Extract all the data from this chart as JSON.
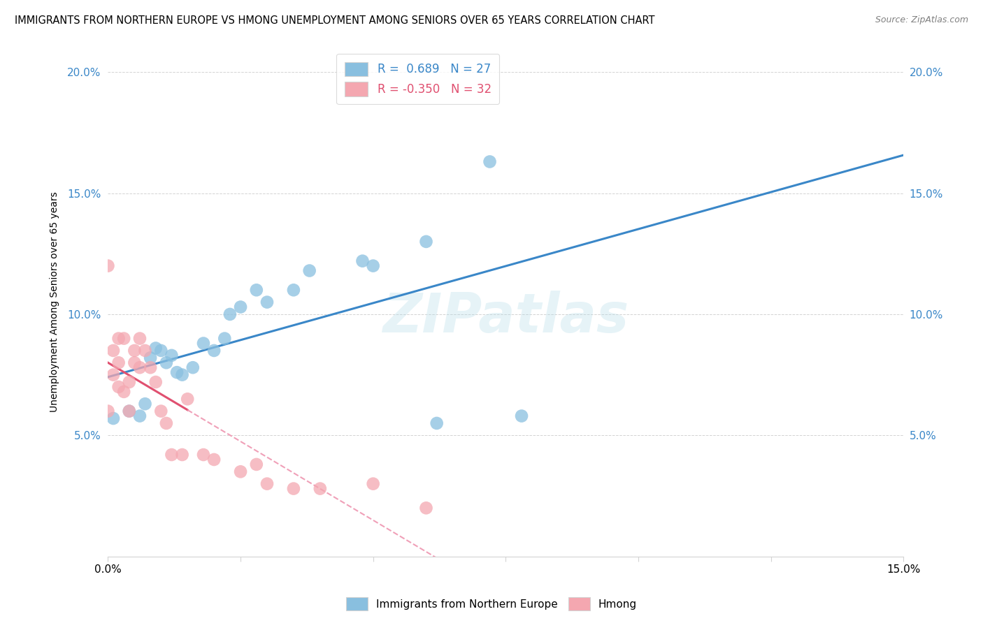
{
  "title": "IMMIGRANTS FROM NORTHERN EUROPE VS HMONG UNEMPLOYMENT AMONG SENIORS OVER 65 YEARS CORRELATION CHART",
  "source": "Source: ZipAtlas.com",
  "ylabel": "Unemployment Among Seniors over 65 years",
  "xlim": [
    0.0,
    0.15
  ],
  "ylim": [
    0.0,
    0.21
  ],
  "xticks": [
    0.0,
    0.025,
    0.05,
    0.075,
    0.1,
    0.125,
    0.15
  ],
  "yticks": [
    0.0,
    0.05,
    0.1,
    0.15,
    0.2
  ],
  "blue_color": "#89bfdf",
  "pink_color": "#f4a7b0",
  "blue_line_color": "#3a87c8",
  "pink_line_color": "#e05070",
  "pink_dash_color": "#f0a0b8",
  "watermark": "ZIPatlas",
  "blue_scatter_x": [
    0.001,
    0.004,
    0.006,
    0.007,
    0.008,
    0.009,
    0.01,
    0.011,
    0.012,
    0.013,
    0.014,
    0.016,
    0.018,
    0.02,
    0.022,
    0.023,
    0.025,
    0.028,
    0.03,
    0.035,
    0.038,
    0.048,
    0.05,
    0.06,
    0.062,
    0.072,
    0.078
  ],
  "blue_scatter_y": [
    0.057,
    0.06,
    0.058,
    0.063,
    0.082,
    0.086,
    0.085,
    0.08,
    0.083,
    0.076,
    0.075,
    0.078,
    0.088,
    0.085,
    0.09,
    0.1,
    0.103,
    0.11,
    0.105,
    0.11,
    0.118,
    0.122,
    0.12,
    0.13,
    0.055,
    0.163,
    0.058
  ],
  "pink_scatter_x": [
    0.0,
    0.0,
    0.001,
    0.001,
    0.002,
    0.002,
    0.002,
    0.003,
    0.003,
    0.004,
    0.004,
    0.005,
    0.005,
    0.006,
    0.006,
    0.007,
    0.008,
    0.009,
    0.01,
    0.011,
    0.012,
    0.014,
    0.015,
    0.018,
    0.02,
    0.025,
    0.028,
    0.03,
    0.035,
    0.04,
    0.05,
    0.06
  ],
  "pink_scatter_y": [
    0.12,
    0.06,
    0.075,
    0.085,
    0.07,
    0.09,
    0.08,
    0.068,
    0.09,
    0.072,
    0.06,
    0.085,
    0.08,
    0.09,
    0.078,
    0.085,
    0.078,
    0.072,
    0.06,
    0.055,
    0.042,
    0.042,
    0.065,
    0.042,
    0.04,
    0.035,
    0.038,
    0.03,
    0.028,
    0.028,
    0.03,
    0.02
  ]
}
